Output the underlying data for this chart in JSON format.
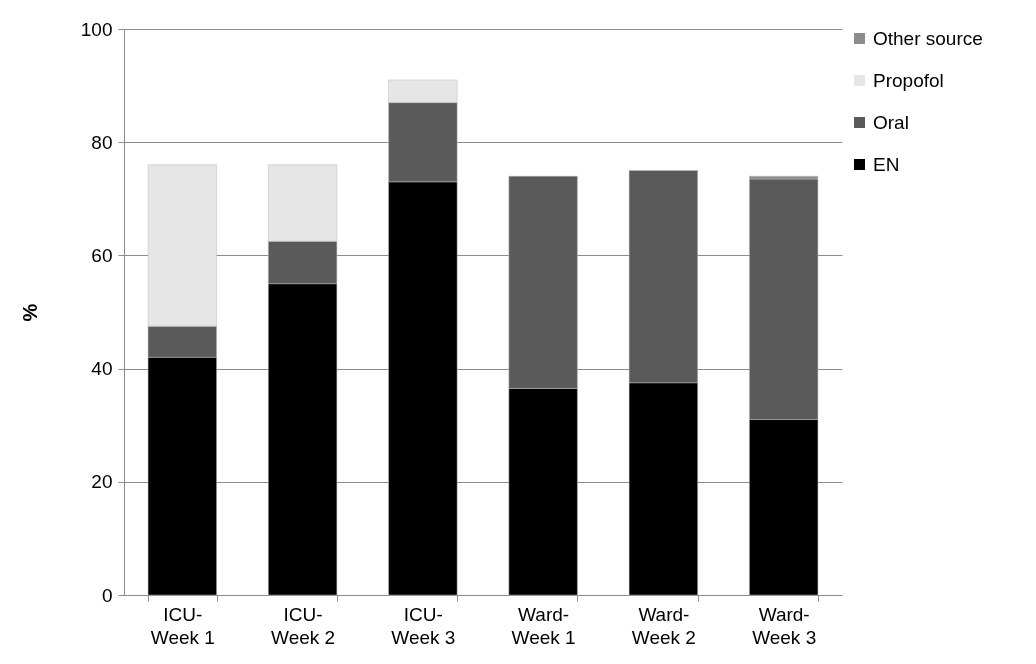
{
  "chart_data": {
    "type": "bar",
    "stacked": true,
    "ylabel": "%",
    "categories": [
      "ICU-Week 1",
      "ICU-Week 2",
      "ICU-Week 3",
      "Ward-Week 1",
      "Ward-Week 2",
      "Ward-Week 3"
    ],
    "series": [
      {
        "name": "EN",
        "color": "#000000",
        "values": [
          42,
          55,
          73,
          36.5,
          37.5,
          31
        ]
      },
      {
        "name": "Oral",
        "color": "#5a5a5a",
        "values": [
          5.5,
          7.5,
          14,
          37.5,
          37.5,
          42.5
        ]
      },
      {
        "name": "Propofol",
        "color": "#e6e6e6",
        "values": [
          28.5,
          13.5,
          4,
          null,
          null,
          null
        ]
      },
      {
        "name": "Other source",
        "color": "#8c8c8c",
        "values": [
          null,
          null,
          null,
          null,
          null,
          0.5
        ]
      }
    ],
    "ylim": [
      0,
      100
    ],
    "yticks": [
      0,
      20,
      40,
      60,
      80,
      100
    ],
    "grid": "y",
    "legend": "right"
  }
}
